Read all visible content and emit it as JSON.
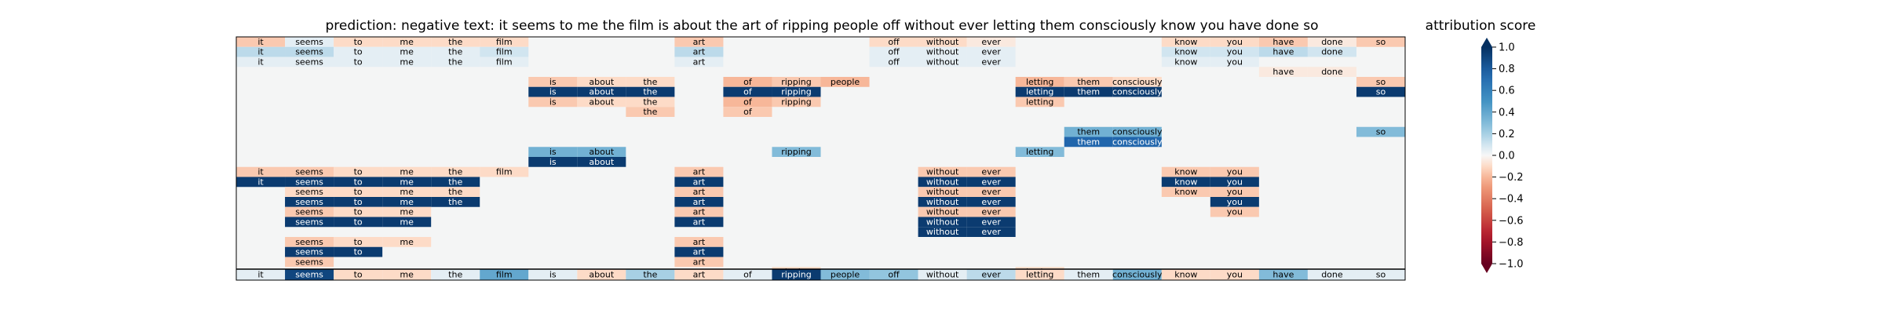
{
  "header": {
    "title": "prediction:  negative     text:  it seems to me the film is about the art of ripping people off without ever letting them consciously know you have done so"
  },
  "colorbar": {
    "title": "attribution score",
    "ticks": [
      1.0,
      0.8,
      0.6,
      0.4,
      0.2,
      0.0,
      -0.2,
      -0.4,
      -0.6,
      -0.8,
      -1.0
    ],
    "tick_labels": [
      "1.0",
      "0.8",
      "0.6",
      "0.4",
      "0.2",
      "0.0",
      "−0.2",
      "−0.4",
      "−0.6",
      "−0.8",
      "−1.0"
    ],
    "extend": "both",
    "colormap": "RdBu"
  },
  "chart_data": {
    "type": "heatmap",
    "title": "prediction:  negative     text:  it seems to me the film is about the art of ripping people off without ever letting them consciously know you have done so",
    "prediction": "negative",
    "tokens": [
      "it",
      "seems",
      "to",
      "me",
      "the",
      "film",
      "is",
      "about",
      "the",
      "art",
      "of",
      "ripping",
      "people",
      "off",
      "without",
      "ever",
      "letting",
      "them",
      "consciously",
      "know",
      "you",
      "have",
      "done",
      "so"
    ],
    "value_range": [
      -1.0,
      1.0
    ],
    "colorbar_label": "attribution score",
    "rows": [
      [
        -0.15,
        0.05,
        -0.1,
        -0.1,
        -0.1,
        -0.1,
        null,
        null,
        null,
        -0.15,
        null,
        null,
        null,
        -0.1,
        -0.1,
        -0.05,
        null,
        null,
        null,
        -0.1,
        -0.1,
        -0.15,
        -0.05,
        -0.15
      ],
      [
        0.15,
        0.15,
        0.05,
        0.05,
        0.05,
        0.1,
        null,
        null,
        null,
        0.15,
        null,
        null,
        null,
        0.05,
        0.05,
        0.05,
        null,
        null,
        null,
        0.1,
        0.1,
        0.15,
        0.1,
        null
      ],
      [
        0.05,
        0.05,
        0.05,
        0.05,
        0.05,
        0.05,
        null,
        null,
        null,
        0.05,
        null,
        null,
        null,
        0.05,
        0.05,
        0.05,
        null,
        null,
        null,
        0.05,
        0.05,
        null,
        null,
        null
      ],
      [
        null,
        null,
        null,
        null,
        null,
        null,
        null,
        null,
        null,
        null,
        null,
        null,
        null,
        null,
        null,
        null,
        null,
        null,
        null,
        null,
        null,
        -0.05,
        -0.05,
        null
      ],
      [
        null,
        null,
        null,
        null,
        null,
        null,
        -0.15,
        -0.1,
        -0.1,
        null,
        -0.2,
        -0.15,
        -0.2,
        null,
        null,
        null,
        -0.2,
        -0.15,
        -0.1,
        null,
        null,
        null,
        null,
        -0.15
      ],
      [
        null,
        null,
        null,
        null,
        null,
        null,
        0.95,
        0.95,
        0.95,
        null,
        0.95,
        0.95,
        null,
        null,
        null,
        null,
        0.95,
        0.95,
        0.95,
        null,
        null,
        null,
        null,
        0.95
      ],
      [
        null,
        null,
        null,
        null,
        null,
        null,
        -0.15,
        -0.1,
        -0.1,
        null,
        -0.2,
        -0.15,
        null,
        null,
        null,
        null,
        -0.15,
        null,
        null,
        null,
        null,
        null,
        null,
        null
      ],
      [
        null,
        null,
        null,
        null,
        null,
        null,
        null,
        null,
        -0.15,
        null,
        -0.15,
        null,
        null,
        null,
        null,
        null,
        null,
        null,
        null,
        null,
        null,
        null,
        null,
        null
      ],
      [
        null,
        null,
        null,
        null,
        null,
        null,
        null,
        null,
        null,
        null,
        null,
        null,
        null,
        null,
        null,
        null,
        null,
        null,
        null,
        null,
        null,
        null,
        null,
        null
      ],
      [
        null,
        null,
        null,
        null,
        null,
        null,
        null,
        null,
        null,
        null,
        null,
        null,
        null,
        null,
        null,
        null,
        null,
        0.35,
        0.35,
        null,
        null,
        null,
        null,
        0.3
      ],
      [
        null,
        null,
        null,
        null,
        null,
        null,
        null,
        null,
        null,
        null,
        null,
        null,
        null,
        null,
        null,
        null,
        null,
        0.75,
        0.75,
        null,
        null,
        null,
        null,
        null
      ],
      [
        null,
        null,
        null,
        null,
        null,
        null,
        0.35,
        0.35,
        null,
        null,
        null,
        0.3,
        null,
        null,
        null,
        null,
        0.3,
        null,
        null,
        null,
        null,
        null,
        null,
        null
      ],
      [
        null,
        null,
        null,
        null,
        null,
        null,
        0.95,
        0.95,
        null,
        null,
        null,
        null,
        null,
        null,
        null,
        null,
        null,
        null,
        null,
        null,
        null,
        null,
        null,
        null
      ],
      [
        -0.15,
        -0.15,
        -0.1,
        -0.1,
        -0.1,
        -0.1,
        null,
        null,
        null,
        -0.15,
        null,
        null,
        null,
        null,
        -0.15,
        -0.15,
        null,
        null,
        null,
        -0.15,
        -0.15,
        null,
        null,
        null
      ],
      [
        0.95,
        0.95,
        0.95,
        0.95,
        0.95,
        null,
        null,
        null,
        null,
        0.95,
        null,
        null,
        null,
        null,
        0.95,
        0.95,
        null,
        null,
        null,
        0.95,
        0.95,
        null,
        null,
        null
      ],
      [
        null,
        -0.1,
        -0.1,
        -0.1,
        -0.1,
        null,
        null,
        null,
        null,
        -0.15,
        null,
        null,
        null,
        null,
        -0.15,
        -0.15,
        null,
        null,
        null,
        -0.15,
        -0.15,
        null,
        null,
        null
      ],
      [
        null,
        0.95,
        0.95,
        0.95,
        0.95,
        null,
        null,
        null,
        null,
        0.95,
        null,
        null,
        null,
        null,
        0.95,
        0.95,
        null,
        null,
        null,
        null,
        0.95,
        null,
        null,
        null
      ],
      [
        null,
        -0.15,
        -0.1,
        -0.1,
        null,
        null,
        null,
        null,
        null,
        -0.15,
        null,
        null,
        null,
        null,
        -0.15,
        -0.15,
        null,
        null,
        null,
        null,
        -0.15,
        null,
        null,
        null
      ],
      [
        null,
        0.95,
        0.95,
        0.95,
        null,
        null,
        null,
        null,
        null,
        0.95,
        null,
        null,
        null,
        null,
        0.95,
        0.95,
        null,
        null,
        null,
        null,
        null,
        null,
        null,
        null
      ],
      [
        null,
        null,
        null,
        null,
        null,
        null,
        null,
        null,
        null,
        null,
        null,
        null,
        null,
        null,
        0.95,
        0.95,
        null,
        null,
        null,
        null,
        null,
        null,
        null,
        null
      ],
      [
        null,
        -0.15,
        -0.1,
        -0.1,
        null,
        null,
        null,
        null,
        null,
        -0.15,
        null,
        null,
        null,
        null,
        null,
        null,
        null,
        null,
        null,
        null,
        null,
        null,
        null,
        null
      ],
      [
        null,
        0.95,
        0.95,
        null,
        null,
        null,
        null,
        null,
        null,
        0.95,
        null,
        null,
        null,
        null,
        null,
        null,
        null,
        null,
        null,
        null,
        null,
        null,
        null,
        null
      ],
      [
        null,
        -0.15,
        null,
        null,
        null,
        null,
        null,
        null,
        null,
        -0.15,
        null,
        null,
        null,
        null,
        null,
        null,
        null,
        null,
        null,
        null,
        null,
        null,
        null,
        null
      ],
      [
        null,
        null,
        null,
        null,
        null,
        null,
        null,
        null,
        null,
        null,
        null,
        -0.1,
        null,
        null,
        null,
        null,
        -0.1,
        null,
        null,
        null,
        null,
        null,
        null,
        null
      ]
    ],
    "bottom_row": [
      0.05,
      0.9,
      -0.1,
      -0.1,
      0.05,
      0.4,
      0.05,
      -0.1,
      0.2,
      -0.1,
      0.05,
      0.95,
      0.3,
      0.25,
      0.05,
      0.15,
      -0.1,
      0.05,
      0.35,
      -0.1,
      -0.1,
      0.3,
      0.05,
      0.05
    ]
  }
}
